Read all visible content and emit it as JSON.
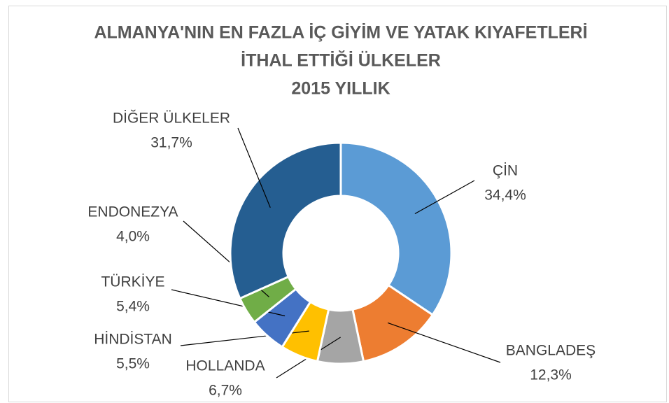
{
  "chart_data": {
    "type": "donut",
    "title": [
      "ALMANYA'NIN  EN FAZLA İÇ GİYİM VE YATAK KIYAFETLERİ",
      "İTHAL ETTİĞİ ÜLKELER",
      "2015 YILLIK"
    ],
    "categories": [
      "ÇİN",
      "BANGLADEŞ",
      "HOLLANDA",
      "HİNDİSTAN",
      "TÜRKİYE",
      "ENDONEZYA",
      "DİĞER ÜLKELER"
    ],
    "values": [
      34.4,
      12.3,
      6.7,
      5.5,
      5.4,
      4.0,
      31.7
    ],
    "value_labels": [
      "34,4%",
      "12,3%",
      "6,7%",
      "5,5%",
      "5,4%",
      "4,0%",
      "31,7%"
    ],
    "colors": [
      "#5b9bd5",
      "#ed7d31",
      "#a5a5a5",
      "#ffc000",
      "#4472c4",
      "#70ad47",
      "#255e91"
    ]
  }
}
